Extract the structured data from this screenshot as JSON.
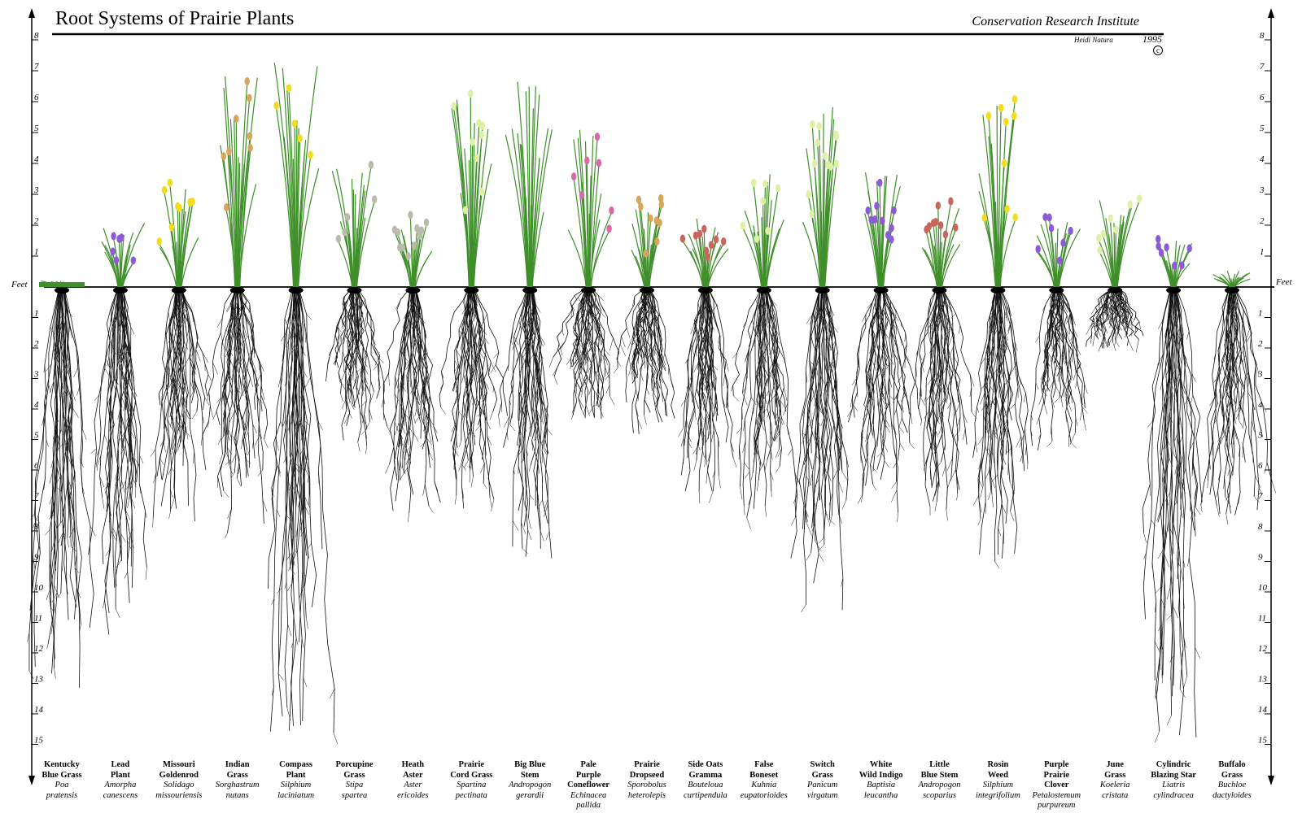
{
  "header": {
    "title": "Root Systems of Prairie Plants",
    "institute": "Conservation Research Institute",
    "artist": "Heidi Natura",
    "year": "1995",
    "copyright_symbol": "c"
  },
  "scale": {
    "unit_label": "Feet",
    "above_ground": [
      "1",
      "2",
      "3",
      "4",
      "5",
      "6",
      "7",
      "8"
    ],
    "below_ground": [
      "1",
      "2",
      "3",
      "4",
      "5",
      "6",
      "7",
      "8",
      "9",
      "10",
      "11",
      "12",
      "13",
      "14",
      "15"
    ]
  },
  "colors": {
    "foliage": "#3f8f2a",
    "roots": "#111111",
    "purple_flower": "#8e5bd6",
    "yellow_flower": "#f2dd1b",
    "pink_flower": "#d66aa7",
    "tan_flower": "#d9a45c",
    "pale_green_flower": "#dff0a5"
  },
  "plants": [
    {
      "common": [
        "Kentucky",
        "Blue Grass"
      ],
      "latin": [
        "Poa",
        "pratensis"
      ],
      "height": 0.2,
      "depth": 13.2,
      "flower": "none",
      "color": "green"
    },
    {
      "common": [
        "Lead",
        "Plant"
      ],
      "latin": [
        "Amorpha",
        "canescens"
      ],
      "height": 2.1,
      "depth": 11.5,
      "flower": "purple",
      "color": "green"
    },
    {
      "common": [
        "Missouri",
        "Goldenrod"
      ],
      "latin": [
        "Solidago",
        "missouriensis"
      ],
      "height": 3.3,
      "depth": 7.8,
      "flower": "yellow",
      "color": "green"
    },
    {
      "common": [
        "Indian",
        "Grass"
      ],
      "latin": [
        "Sorghastrum",
        "nutans"
      ],
      "height": 7.0,
      "depth": 8.8,
      "flower": "tan",
      "color": "green"
    },
    {
      "common": [
        "Compass",
        "Plant"
      ],
      "latin": [
        "Silphium",
        "laciniatum"
      ],
      "height": 7.3,
      "depth": 14.8,
      "flower": "yellow",
      "color": "green"
    },
    {
      "common": [
        "Porcupine",
        "Grass"
      ],
      "latin": [
        "Stipa",
        "spartea"
      ],
      "height": 4.0,
      "depth": 5.2,
      "flower": "grey",
      "color": "green"
    },
    {
      "common": [
        "Heath",
        "Aster"
      ],
      "latin": [
        "Aster",
        "ericoides"
      ],
      "height": 2.3,
      "depth": 7.5,
      "flower": "grey",
      "color": "green"
    },
    {
      "common": [
        "Prairie",
        "Cord Grass"
      ],
      "latin": [
        "Spartina",
        "pectinata"
      ],
      "height": 6.5,
      "depth": 7.3,
      "flower": "pale",
      "color": "green"
    },
    {
      "common": [
        "Big Blue",
        "Stem"
      ],
      "latin": [
        "Andropogon",
        "gerardii"
      ],
      "height": 6.8,
      "depth": 9.2,
      "flower": "none",
      "color": "green"
    },
    {
      "common": [
        "Pale",
        "Purple",
        "Coneflower"
      ],
      "latin": [
        "Echinacea",
        "pallida"
      ],
      "height": 5.1,
      "depth": 4.5,
      "flower": "pink",
      "color": "green"
    },
    {
      "common": [
        "Prairie",
        "Dropseed"
      ],
      "latin": [
        "Sporobolus",
        "heterolepis"
      ],
      "height": 2.8,
      "depth": 4.8,
      "flower": "tan",
      "color": "green"
    },
    {
      "common": [
        "Side Oats",
        "Gramma"
      ],
      "latin": [
        "Bouteloua",
        "curtipendula"
      ],
      "height": 2.3,
      "depth": 7.0,
      "flower": "red",
      "color": "green"
    },
    {
      "common": [
        "False",
        "Boneset"
      ],
      "latin": [
        "Kuhnia",
        "eupatorioides"
      ],
      "height": 3.9,
      "depth": 7.6,
      "flower": "pale",
      "color": "green"
    },
    {
      "common": [
        "Switch",
        "Grass"
      ],
      "latin": [
        "Panicum",
        "virgatum"
      ],
      "height": 6.0,
      "depth": 10.8,
      "flower": "pale",
      "color": "green"
    },
    {
      "common": [
        "White",
        "Wild Indigo"
      ],
      "latin": [
        "Baptisia",
        "leucantha"
      ],
      "height": 4.0,
      "depth": 7.4,
      "flower": "purple",
      "color": "green"
    },
    {
      "common": [
        "Little",
        "Blue Stem"
      ],
      "latin": [
        "Andropogon",
        "scoparius"
      ],
      "height": 2.7,
      "depth": 7.4,
      "flower": "red",
      "color": "green"
    },
    {
      "common": [
        "Rosin",
        "Weed"
      ],
      "latin": [
        "Silphium",
        "integrifolium"
      ],
      "height": 6.0,
      "depth": 9.0,
      "flower": "yellow",
      "color": "green"
    },
    {
      "common": [
        "Purple",
        "Prairie",
        "Clover"
      ],
      "latin": [
        "Petalostemum",
        "purpureum"
      ],
      "height": 2.2,
      "depth": 5.4,
      "flower": "purple",
      "color": "green"
    },
    {
      "common": [
        "June",
        "Grass"
      ],
      "latin": [
        "Koeleria",
        "cristata"
      ],
      "height": 3.0,
      "depth": 2.0,
      "flower": "pale",
      "color": "green"
    },
    {
      "common": [
        "Cylindric",
        "Blazing Star"
      ],
      "latin": [
        "Liatris",
        "cylindracea"
      ],
      "height": 1.5,
      "depth": 15.0,
      "flower": "purple",
      "color": "green"
    },
    {
      "common": [
        "Buffalo",
        "Grass"
      ],
      "latin": [
        "Buchloe",
        "dactyloides"
      ],
      "height": 0.6,
      "depth": 7.5,
      "flower": "none",
      "color": "green"
    }
  ]
}
